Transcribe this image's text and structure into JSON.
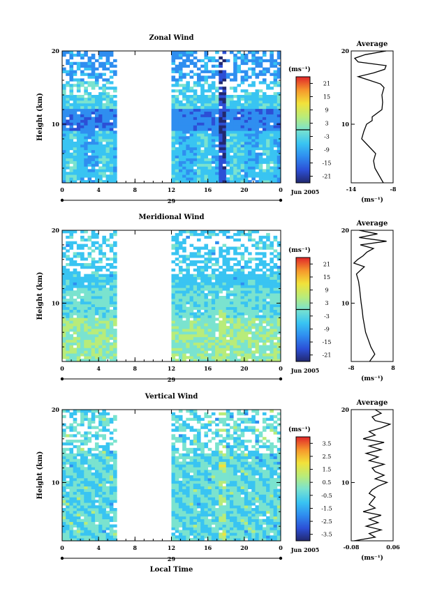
{
  "chart_data": [
    {
      "type": "heatmap",
      "title": "Zonal Wind",
      "ylabel": "Height (km)",
      "x_ticks": [
        "0",
        "4",
        "8",
        "12",
        "16",
        "20",
        "0"
      ],
      "y_ticks": [
        "20",
        "10"
      ],
      "xlim": [
        0,
        24
      ],
      "ylim": [
        2,
        20
      ],
      "date_marker": "29",
      "date_label": "Jun 2005",
      "data_gap_hours": [
        6,
        12
      ],
      "colorbar": {
        "unit": "(ms⁻¹)",
        "ticks": [
          "21",
          "15",
          "9",
          "3",
          "-3",
          "-9",
          "-15",
          "-21"
        ],
        "range": [
          -24,
          24
        ],
        "zero_contour": true
      },
      "average_profile": {
        "title": "Average",
        "xlabel": "(ms⁻¹)",
        "x_ticks": [
          "-14",
          "-8"
        ],
        "y_ticks": [
          "20",
          "10"
        ],
        "xlim": [
          -14,
          -8
        ],
        "height_km": [
          2,
          3,
          4,
          5,
          6,
          7,
          8,
          9,
          10,
          10.5,
          11,
          12,
          13,
          14,
          15,
          15.5,
          16,
          16.5,
          17,
          17.5,
          18,
          18.5,
          19,
          19.5,
          20
        ],
        "values": [
          -9.4,
          -10.0,
          -10.6,
          -10.8,
          -10.5,
          -11.5,
          -12.5,
          -12.2,
          -11.8,
          -11.0,
          -11.0,
          -9.6,
          -9.5,
          -9.6,
          -9.3,
          -9.8,
          -11.4,
          -13.0,
          -10.8,
          -9.2,
          -9.0,
          -13.0,
          -13.5,
          -12.0,
          -9.0
        ]
      }
    },
    {
      "type": "heatmap",
      "title": "Meridional Wind",
      "ylabel": "Height (km)",
      "x_ticks": [
        "0",
        "4",
        "8",
        "12",
        "16",
        "20",
        "0"
      ],
      "y_ticks": [
        "20",
        "10"
      ],
      "xlim": [
        0,
        24
      ],
      "ylim": [
        2,
        20
      ],
      "date_marker": "29",
      "date_label": "Jun 2005",
      "data_gap_hours": [
        6,
        12
      ],
      "colorbar": {
        "unit": "(ms⁻¹)",
        "ticks": [
          "21",
          "15",
          "9",
          "3",
          "-3",
          "-9",
          "-15",
          "-21"
        ],
        "range": [
          -24,
          24
        ],
        "zero_contour": true
      },
      "average_profile": {
        "title": "Average",
        "xlabel": "(ms⁻¹)",
        "x_ticks": [
          "-8",
          "8"
        ],
        "y_ticks": [
          "20",
          "10"
        ],
        "xlim": [
          -8,
          8
        ],
        "height_km": [
          2,
          3,
          4,
          5,
          6,
          7,
          8,
          9,
          10,
          11,
          12,
          13,
          14,
          15,
          15.5,
          16,
          16.5,
          17,
          17.5,
          18,
          18.5,
          19,
          19.5,
          20
        ],
        "values": [
          -1,
          1,
          -0.5,
          -1.5,
          -2.5,
          -3.0,
          -3.5,
          -3.8,
          -4.2,
          -4.5,
          -4.8,
          -5.2,
          -6.0,
          -3.0,
          -7.0,
          -5.5,
          -3.5,
          -2.0,
          0.5,
          -4.5,
          5.5,
          -5.0,
          2.0,
          -5.0
        ]
      }
    },
    {
      "type": "heatmap",
      "title": "Vertical Wind",
      "xlabel": "Local Time",
      "ylabel": "Height (km)",
      "x_ticks": [
        "0",
        "4",
        "8",
        "12",
        "16",
        "20",
        "0"
      ],
      "y_ticks": [
        "20",
        "10"
      ],
      "xlim": [
        0,
        24
      ],
      "ylim": [
        2,
        20
      ],
      "date_marker": "29",
      "date_label": "Jun 2005",
      "data_gap_hours": [
        6,
        12
      ],
      "colorbar": {
        "unit": "(ms⁻¹)",
        "ticks": [
          "3.5",
          "2.5",
          "1.5",
          "0.5",
          "-0.5",
          "-1.5",
          "-2.5",
          "-3.5"
        ],
        "range": [
          -4,
          4
        ],
        "zero_contour": false
      },
      "average_profile": {
        "title": "Average",
        "xlabel": "(ms⁻¹)",
        "x_ticks": [
          "-0.08",
          "0.06"
        ],
        "y_ticks": [
          "20",
          "10"
        ],
        "xlim": [
          -0.08,
          0.06
        ],
        "height_km": [
          2,
          2.5,
          3,
          3.5,
          4,
          4.5,
          5,
          5.5,
          6,
          6.5,
          7,
          7.5,
          8,
          8.5,
          9,
          9.5,
          10,
          10.5,
          11,
          11.5,
          12,
          12.5,
          13,
          13.5,
          14,
          14.5,
          15,
          15.5,
          16,
          16.5,
          17,
          17.5,
          18,
          18.5,
          19,
          19.5,
          20
        ],
        "values": [
          -0.07,
          0.0,
          -0.02,
          0.02,
          -0.03,
          0.01,
          -0.02,
          0.02,
          -0.04,
          0.0,
          -0.02,
          -0.01,
          0.0,
          -0.02,
          -0.01,
          0.01,
          0.04,
          0.0,
          0.03,
          0.0,
          -0.01,
          0.03,
          -0.02,
          0.01,
          -0.03,
          0.02,
          -0.02,
          0.03,
          -0.04,
          0.0,
          -0.02,
          0.02,
          0.05,
          0.0,
          -0.01,
          0.02,
          0.0
        ]
      }
    }
  ]
}
